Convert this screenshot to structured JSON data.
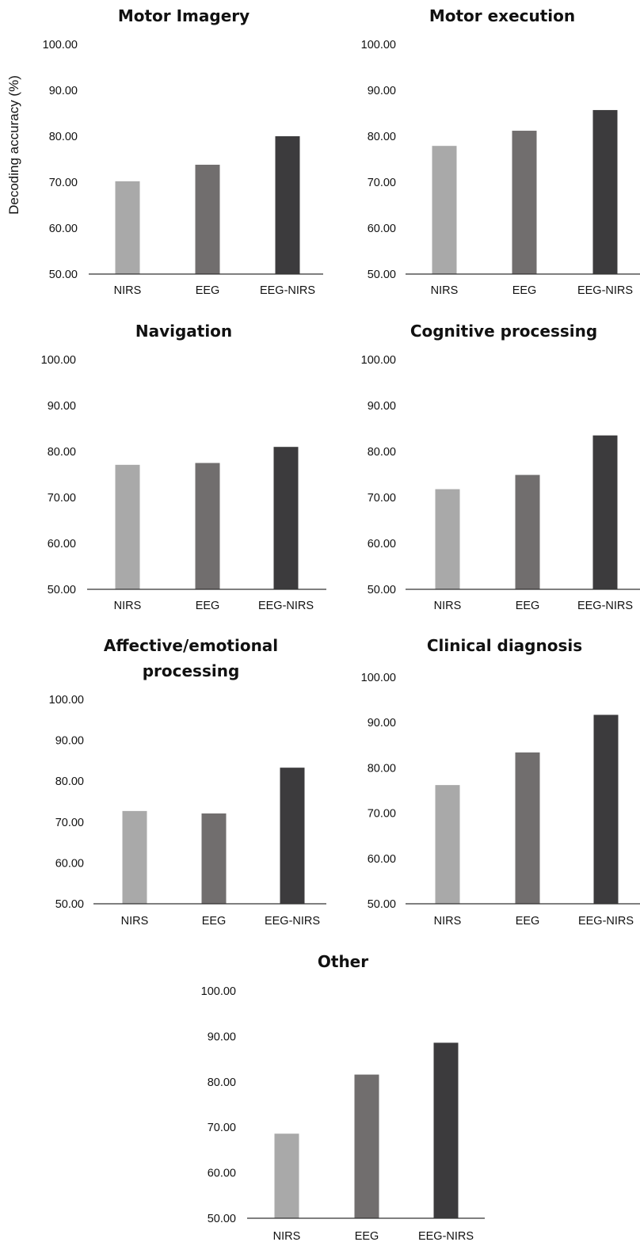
{
  "figure": {
    "ylabel": "Decoding accuracy (%)"
  },
  "chart_data": [
    {
      "type": "bar",
      "title": "Motor Imagery",
      "categories": [
        "NIRS",
        "EEG",
        "EEG-NIRS"
      ],
      "values": [
        70.2,
        73.8,
        80.0
      ],
      "colors": [
        "#a9a9a9",
        "#716e6e",
        "#3c3b3d"
      ],
      "ylim": [
        50,
        100
      ],
      "yticks": [
        "50.00",
        "60.00",
        "70.00",
        "80.00",
        "90.00",
        "100.00"
      ],
      "ylabel": "Decoding accuracy (%)",
      "grid": false
    },
    {
      "type": "bar",
      "title": "Motor execution",
      "categories": [
        "NIRS",
        "EEG",
        "EEG-NIRS"
      ],
      "values": [
        77.9,
        81.2,
        85.7
      ],
      "colors": [
        "#a9a9a9",
        "#716e6e",
        "#3c3b3d"
      ],
      "ylim": [
        50,
        100
      ],
      "yticks": [
        "50.00",
        "60.00",
        "70.00",
        "80.00",
        "90.00",
        "100.00"
      ],
      "grid": false
    },
    {
      "type": "bar",
      "title": "Navigation",
      "categories": [
        "NIRS",
        "EEG",
        "EEG-NIRS"
      ],
      "values": [
        77.1,
        77.5,
        81.0
      ],
      "colors": [
        "#a9a9a9",
        "#716e6e",
        "#3c3b3d"
      ],
      "ylim": [
        50,
        100
      ],
      "yticks": [
        "50.00",
        "60.00",
        "70.00",
        "80.00",
        "90.00",
        "100.00"
      ],
      "grid": false
    },
    {
      "type": "bar",
      "title": "Cognitive processing",
      "categories": [
        "NIRS",
        "EEG",
        "EEG-NIRS"
      ],
      "values": [
        71.8,
        74.9,
        83.5
      ],
      "colors": [
        "#a9a9a9",
        "#716e6e",
        "#3c3b3d"
      ],
      "ylim": [
        50,
        100
      ],
      "yticks": [
        "50.00",
        "60.00",
        "70.00",
        "80.00",
        "90.00",
        "100.00"
      ],
      "grid": false
    },
    {
      "type": "bar",
      "title": "Affective/emotional processing",
      "title_lines": [
        "Affective/emotional",
        "processing"
      ],
      "categories": [
        "NIRS",
        "EEG",
        "EEG-NIRS"
      ],
      "values": [
        72.7,
        72.1,
        83.3
      ],
      "colors": [
        "#a9a9a9",
        "#716e6e",
        "#3c3b3d"
      ],
      "ylim": [
        50,
        100
      ],
      "yticks": [
        "50.00",
        "60.00",
        "70.00",
        "80.00",
        "90.00",
        "100.00"
      ],
      "grid": false
    },
    {
      "type": "bar",
      "title": "Clinical diagnosis",
      "categories": [
        "NIRS",
        "EEG",
        "EEG-NIRS"
      ],
      "values": [
        76.2,
        83.4,
        91.7
      ],
      "colors": [
        "#a9a9a9",
        "#716e6e",
        "#3c3b3d"
      ],
      "ylim": [
        50,
        100
      ],
      "yticks": [
        "50.00",
        "60.00",
        "70.00",
        "80.00",
        "90.00",
        "100.00"
      ],
      "grid": false
    },
    {
      "type": "bar",
      "title": "Other",
      "categories": [
        "NIRS",
        "EEG",
        "EEG-NIRS"
      ],
      "values": [
        68.6,
        81.6,
        88.6
      ],
      "colors": [
        "#a9a9a9",
        "#716e6e",
        "#3c3b3d"
      ],
      "ylim": [
        50,
        100
      ],
      "yticks": [
        "50.00",
        "60.00",
        "70.00",
        "80.00",
        "90.00",
        "100.00"
      ],
      "grid": false
    }
  ]
}
